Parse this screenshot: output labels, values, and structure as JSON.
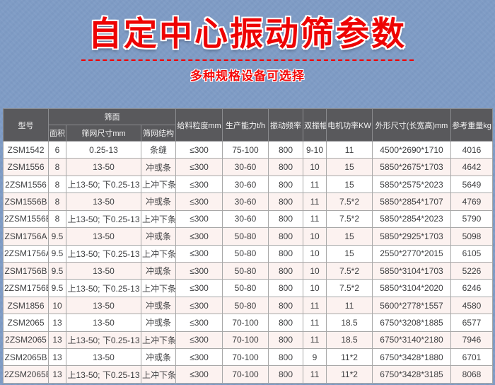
{
  "page": {
    "title": "自定中心振动筛参数",
    "subtitle": "多种规格设备可选择"
  },
  "colors": {
    "background_blue": "#7f9cc5",
    "accent_red": "#ee0303",
    "header_bg": "#59595c",
    "row_alt_pink": "#fcf2f0",
    "grid_line": "#a8a8a8"
  },
  "table": {
    "header": {
      "model": "型号",
      "screen_surface": "筛面",
      "area": "面积",
      "mesh_size": "筛网尺寸mm",
      "mesh_structure": "筛网结构",
      "feed_size": "给料粒度mm",
      "capacity": "生产能力t/h",
      "frequency": "振动频率",
      "amplitude": "双振幅",
      "motor_power": "电机功率KW",
      "dimensions": "外形尺寸(长宽高)mm",
      "weight": "参考重量kg"
    },
    "rows": [
      [
        "ZSM1542",
        "6",
        "0.25-13",
        "条缝",
        "≤300",
        "75-100",
        "800",
        "9-10",
        "11",
        "4500*2690*1710",
        "4016"
      ],
      [
        "ZSM1556",
        "8",
        "13-50",
        "冲或条",
        "≤300",
        "30-60",
        "800",
        "10",
        "15",
        "5850*2675*1703",
        "4642"
      ],
      [
        "2ZSM1556",
        "8",
        "上13-50; 下0.25-13",
        "上冲下条",
        "≤300",
        "30-60",
        "800",
        "11",
        "15",
        "5850*2575*2023",
        "5649"
      ],
      [
        "ZSM1556B",
        "8",
        "13-50",
        "冲或条",
        "≤300",
        "30-60",
        "800",
        "11",
        "7.5*2",
        "5850*2854*1707",
        "4769"
      ],
      [
        "2ZSM1556B",
        "8",
        "上13-50; 下0.25-13",
        "上冲下条",
        "≤300",
        "30-60",
        "800",
        "11",
        "7.5*2",
        "5850*2854*2023",
        "5790"
      ],
      [
        "ZSM1756A",
        "9.5",
        "13-50",
        "冲或条",
        "≤300",
        "50-80",
        "800",
        "10",
        "15",
        "5850*2925*1703",
        "5098"
      ],
      [
        "2ZSM1756A",
        "9.5",
        "上13-50; 下0.25-13",
        "上冲下条",
        "≤300",
        "50-80",
        "800",
        "10",
        "15",
        "2550*2770*2015",
        "6105"
      ],
      [
        "ZSM1756B",
        "9.5",
        "13-50",
        "冲或条",
        "≤300",
        "50-80",
        "800",
        "10",
        "7.5*2",
        "5850*3104*1703",
        "5226"
      ],
      [
        "2ZSM1756B",
        "9.5",
        "上13-50; 下0.25-13",
        "上冲下条",
        "≤300",
        "50-80",
        "800",
        "10",
        "7.5*2",
        "5850*3104*2020",
        "6246"
      ],
      [
        "ZSM1856",
        "10",
        "13-50",
        "冲或条",
        "≤300",
        "50-80",
        "800",
        "11",
        "11",
        "5600*2778*1557",
        "4580"
      ],
      [
        "ZSM2065",
        "13",
        "13-50",
        "冲或条",
        "≤300",
        "70-100",
        "800",
        "11",
        "18.5",
        "6750*3208*1885",
        "6577"
      ],
      [
        "2ZSM2065",
        "13",
        "上13-50; 下0.25-13",
        "上冲下条",
        "≤300",
        "70-100",
        "800",
        "11",
        "18.5",
        "6750*3140*2180",
        "7946"
      ],
      [
        "ZSM2065B",
        "13",
        "13-50",
        "冲或条",
        "≤300",
        "70-100",
        "800",
        "9",
        "11*2",
        "6750*3428*1880",
        "6701"
      ],
      [
        "2ZSM2065B",
        "13",
        "上13-50; 下0.25-13",
        "上冲下条",
        "≤300",
        "70-100",
        "800",
        "11",
        "11*2",
        "6750*3428*3185",
        "8068"
      ]
    ]
  }
}
